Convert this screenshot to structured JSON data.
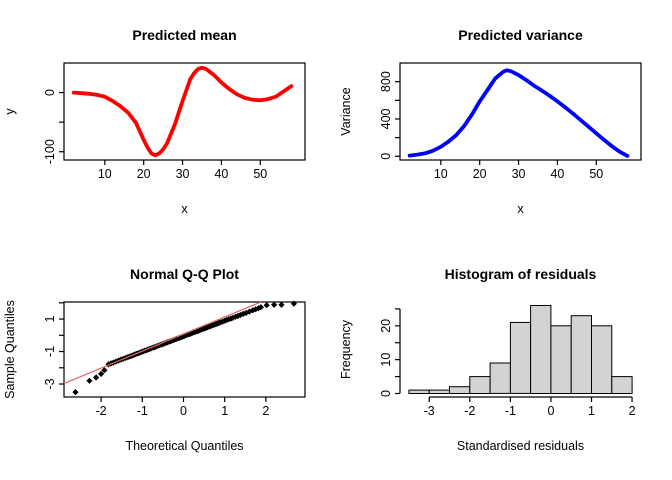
{
  "figure": {
    "background": "#ffffff",
    "panel_count": 4
  },
  "chart_data": [
    {
      "id": "predicted-mean",
      "type": "line",
      "title": "Predicted mean",
      "xlabel": "x",
      "ylabel": "y",
      "line_color": "#ff0000",
      "line_width": 3.8,
      "box": true,
      "xlim": [
        -0.5,
        61.5
      ],
      "ylim": [
        -114,
        50
      ],
      "xticks": [
        {
          "v": 10,
          "label": "10"
        },
        {
          "v": 20,
          "label": "20"
        },
        {
          "v": 30,
          "label": "30"
        },
        {
          "v": 40,
          "label": "40"
        },
        {
          "v": 50,
          "label": "50"
        }
      ],
      "yticks": [
        {
          "v": -100,
          "label": "-100"
        },
        {
          "v": -50,
          "label": ""
        },
        {
          "v": 0,
          "label": "0"
        }
      ],
      "x": [
        2,
        4,
        6,
        8,
        10,
        12,
        14,
        16,
        18,
        20,
        21,
        22,
        23,
        24,
        25,
        26,
        28,
        30,
        32,
        33,
        34,
        35,
        36,
        38,
        40,
        42,
        44,
        46,
        48,
        50,
        52,
        54,
        56,
        58
      ],
      "y": [
        0,
        -1,
        -2,
        -4,
        -7,
        -14,
        -23,
        -34,
        -51,
        -80,
        -93,
        -103,
        -106,
        -103,
        -96,
        -86,
        -54,
        -14,
        23,
        33,
        40,
        42,
        40,
        30,
        17,
        6,
        -3,
        -9,
        -12,
        -13,
        -11,
        -7,
        2,
        11
      ]
    },
    {
      "id": "predicted-variance",
      "type": "line",
      "title": "Predicted variance",
      "xlabel": "x",
      "ylabel": "Variance",
      "line_color": "#0000ff",
      "line_width": 3.8,
      "box": true,
      "xlim": [
        -0.5,
        61.5
      ],
      "ylim": [
        -40,
        1000
      ],
      "xticks": [
        {
          "v": 10,
          "label": "10"
        },
        {
          "v": 20,
          "label": "20"
        },
        {
          "v": 30,
          "label": "30"
        },
        {
          "v": 40,
          "label": "40"
        },
        {
          "v": 50,
          "label": "50"
        }
      ],
      "yticks": [
        {
          "v": 0,
          "label": "0"
        },
        {
          "v": 200,
          "label": ""
        },
        {
          "v": 400,
          "label": "400"
        },
        {
          "v": 600,
          "label": ""
        },
        {
          "v": 800,
          "label": "800"
        }
      ],
      "x": [
        2,
        4,
        6,
        8,
        10,
        12,
        14,
        16,
        18,
        20,
        22,
        24,
        26,
        27,
        28,
        30,
        32,
        34,
        36,
        38,
        40,
        42,
        44,
        46,
        48,
        50,
        52,
        54,
        56,
        58
      ],
      "y": [
        7,
        18,
        32,
        60,
        102,
        158,
        229,
        324,
        447,
        588,
        711,
        834,
        905,
        922,
        912,
        870,
        817,
        757,
        704,
        648,
        588,
        525,
        458,
        387,
        317,
        246,
        176,
        109,
        49,
        4
      ]
    },
    {
      "id": "qq-plot",
      "type": "scatter",
      "title": "Normal Q-Q Plot",
      "xlabel": "Theoretical Quantiles",
      "ylabel": "Sample Quantiles",
      "marker": "diamond",
      "marker_color": "#000000",
      "marker_size": 3.1,
      "box": true,
      "xlim": [
        -2.9,
        2.95
      ],
      "ylim": [
        -3.8,
        2.05
      ],
      "xticks": [
        {
          "v": -2,
          "label": "-2"
        },
        {
          "v": -1,
          "label": "-1"
        },
        {
          "v": 0,
          "label": "0"
        },
        {
          "v": 1,
          "label": "1"
        },
        {
          "v": 2,
          "label": "2"
        }
      ],
      "yticks": [
        {
          "v": -3,
          "label": "-3"
        },
        {
          "v": -2,
          "label": ""
        },
        {
          "v": -1,
          "label": "-1"
        },
        {
          "v": 0,
          "label": ""
        },
        {
          "v": 1,
          "label": "1"
        },
        {
          "v": 2,
          "label": ""
        }
      ],
      "ref_line": {
        "x1": -2.9,
        "y1": -2.97,
        "x2": 1.88,
        "y2": 2.05,
        "color": "#e06666",
        "width": 1.2
      },
      "points": [
        [
          -2.62,
          -3.5
        ],
        [
          -2.28,
          -2.8
        ],
        [
          -2.12,
          -2.6
        ],
        [
          -2.0,
          -2.38
        ],
        [
          -1.92,
          -2.15
        ],
        [
          -1.82,
          -1.79
        ],
        [
          -1.76,
          -1.73
        ],
        [
          -1.7,
          -1.68
        ],
        [
          -1.64,
          -1.62
        ],
        [
          -1.58,
          -1.56
        ],
        [
          -1.52,
          -1.5
        ],
        [
          -1.46,
          -1.45
        ],
        [
          -1.4,
          -1.39
        ],
        [
          -1.35,
          -1.34
        ],
        [
          -1.3,
          -1.3
        ],
        [
          -1.26,
          -1.26
        ],
        [
          -1.22,
          -1.22
        ],
        [
          -1.18,
          -1.18
        ],
        [
          -1.14,
          -1.14
        ],
        [
          -1.1,
          -1.11
        ],
        [
          -1.06,
          -1.07
        ],
        [
          -1.02,
          -1.03
        ],
        [
          -0.98,
          -0.99
        ],
        [
          -0.94,
          -0.95
        ],
        [
          -0.9,
          -0.92
        ],
        [
          -0.86,
          -0.88
        ],
        [
          -0.82,
          -0.84
        ],
        [
          -0.78,
          -0.8
        ],
        [
          -0.74,
          -0.76
        ],
        [
          -0.7,
          -0.73
        ],
        [
          -0.66,
          -0.69
        ],
        [
          -0.62,
          -0.65
        ],
        [
          -0.58,
          -0.61
        ],
        [
          -0.54,
          -0.57
        ],
        [
          -0.5,
          -0.54
        ],
        [
          -0.46,
          -0.5
        ],
        [
          -0.42,
          -0.46
        ],
        [
          -0.38,
          -0.42
        ],
        [
          -0.34,
          -0.38
        ],
        [
          -0.3,
          -0.35
        ],
        [
          -0.26,
          -0.31
        ],
        [
          -0.22,
          -0.27
        ],
        [
          -0.18,
          -0.23
        ],
        [
          -0.14,
          -0.19
        ],
        [
          -0.1,
          -0.16
        ],
        [
          -0.06,
          -0.12
        ],
        [
          -0.02,
          -0.08
        ],
        [
          0.02,
          -0.04
        ],
        [
          0.06,
          0.0
        ],
        [
          0.1,
          0.04
        ],
        [
          0.14,
          0.07
        ],
        [
          0.18,
          0.11
        ],
        [
          0.22,
          0.15
        ],
        [
          0.26,
          0.19
        ],
        [
          0.3,
          0.23
        ],
        [
          0.34,
          0.26
        ],
        [
          0.38,
          0.3
        ],
        [
          0.42,
          0.34
        ],
        [
          0.46,
          0.38
        ],
        [
          0.5,
          0.42
        ],
        [
          0.54,
          0.45
        ],
        [
          0.58,
          0.49
        ],
        [
          0.62,
          0.53
        ],
        [
          0.66,
          0.57
        ],
        [
          0.7,
          0.61
        ],
        [
          0.74,
          0.64
        ],
        [
          0.78,
          0.68
        ],
        [
          0.82,
          0.72
        ],
        [
          0.86,
          0.76
        ],
        [
          0.9,
          0.8
        ],
        [
          0.95,
          0.84
        ],
        [
          1.0,
          0.89
        ],
        [
          1.05,
          0.94
        ],
        [
          1.1,
          0.99
        ],
        [
          1.15,
          1.03
        ],
        [
          1.2,
          1.08
        ],
        [
          1.26,
          1.14
        ],
        [
          1.32,
          1.19
        ],
        [
          1.38,
          1.25
        ],
        [
          1.45,
          1.32
        ],
        [
          1.52,
          1.38
        ],
        [
          1.6,
          1.46
        ],
        [
          1.68,
          1.54
        ],
        [
          1.75,
          1.6
        ],
        [
          1.82,
          1.67
        ],
        [
          1.88,
          1.73
        ],
        [
          2.02,
          1.85
        ],
        [
          2.2,
          1.88
        ],
        [
          2.38,
          1.88
        ],
        [
          2.68,
          1.95
        ]
      ]
    },
    {
      "id": "residual-histogram",
      "type": "bar",
      "title": "Histogram of residuals",
      "xlabel": "Standardised residuals",
      "ylabel": "Frequency",
      "bar_fill": "#d3d3d3",
      "bar_stroke": "#000000",
      "box": false,
      "xlim": [
        -3.72,
        2.22
      ],
      "ylim": [
        -1.04,
        27.04
      ],
      "bins": {
        "start": -3.5,
        "width": 0.5,
        "counts": [
          1,
          1,
          2,
          5,
          9,
          21,
          26,
          20,
          23,
          20,
          5
        ]
      },
      "xticks": [
        {
          "v": -3,
          "label": "-3"
        },
        {
          "v": -2,
          "label": "-2"
        },
        {
          "v": -1,
          "label": "-1"
        },
        {
          "v": 0,
          "label": "0"
        },
        {
          "v": 1,
          "label": "1"
        },
        {
          "v": 2,
          "label": "2"
        }
      ],
      "yticks": [
        {
          "v": 0,
          "label": "0"
        },
        {
          "v": 5,
          "label": ""
        },
        {
          "v": 10,
          "label": "10"
        },
        {
          "v": 15,
          "label": ""
        },
        {
          "v": 20,
          "label": "20"
        },
        {
          "v": 25,
          "label": ""
        }
      ],
      "x_axis_span": [
        -3,
        2
      ],
      "y_axis_span": [
        0,
        25
      ]
    }
  ]
}
